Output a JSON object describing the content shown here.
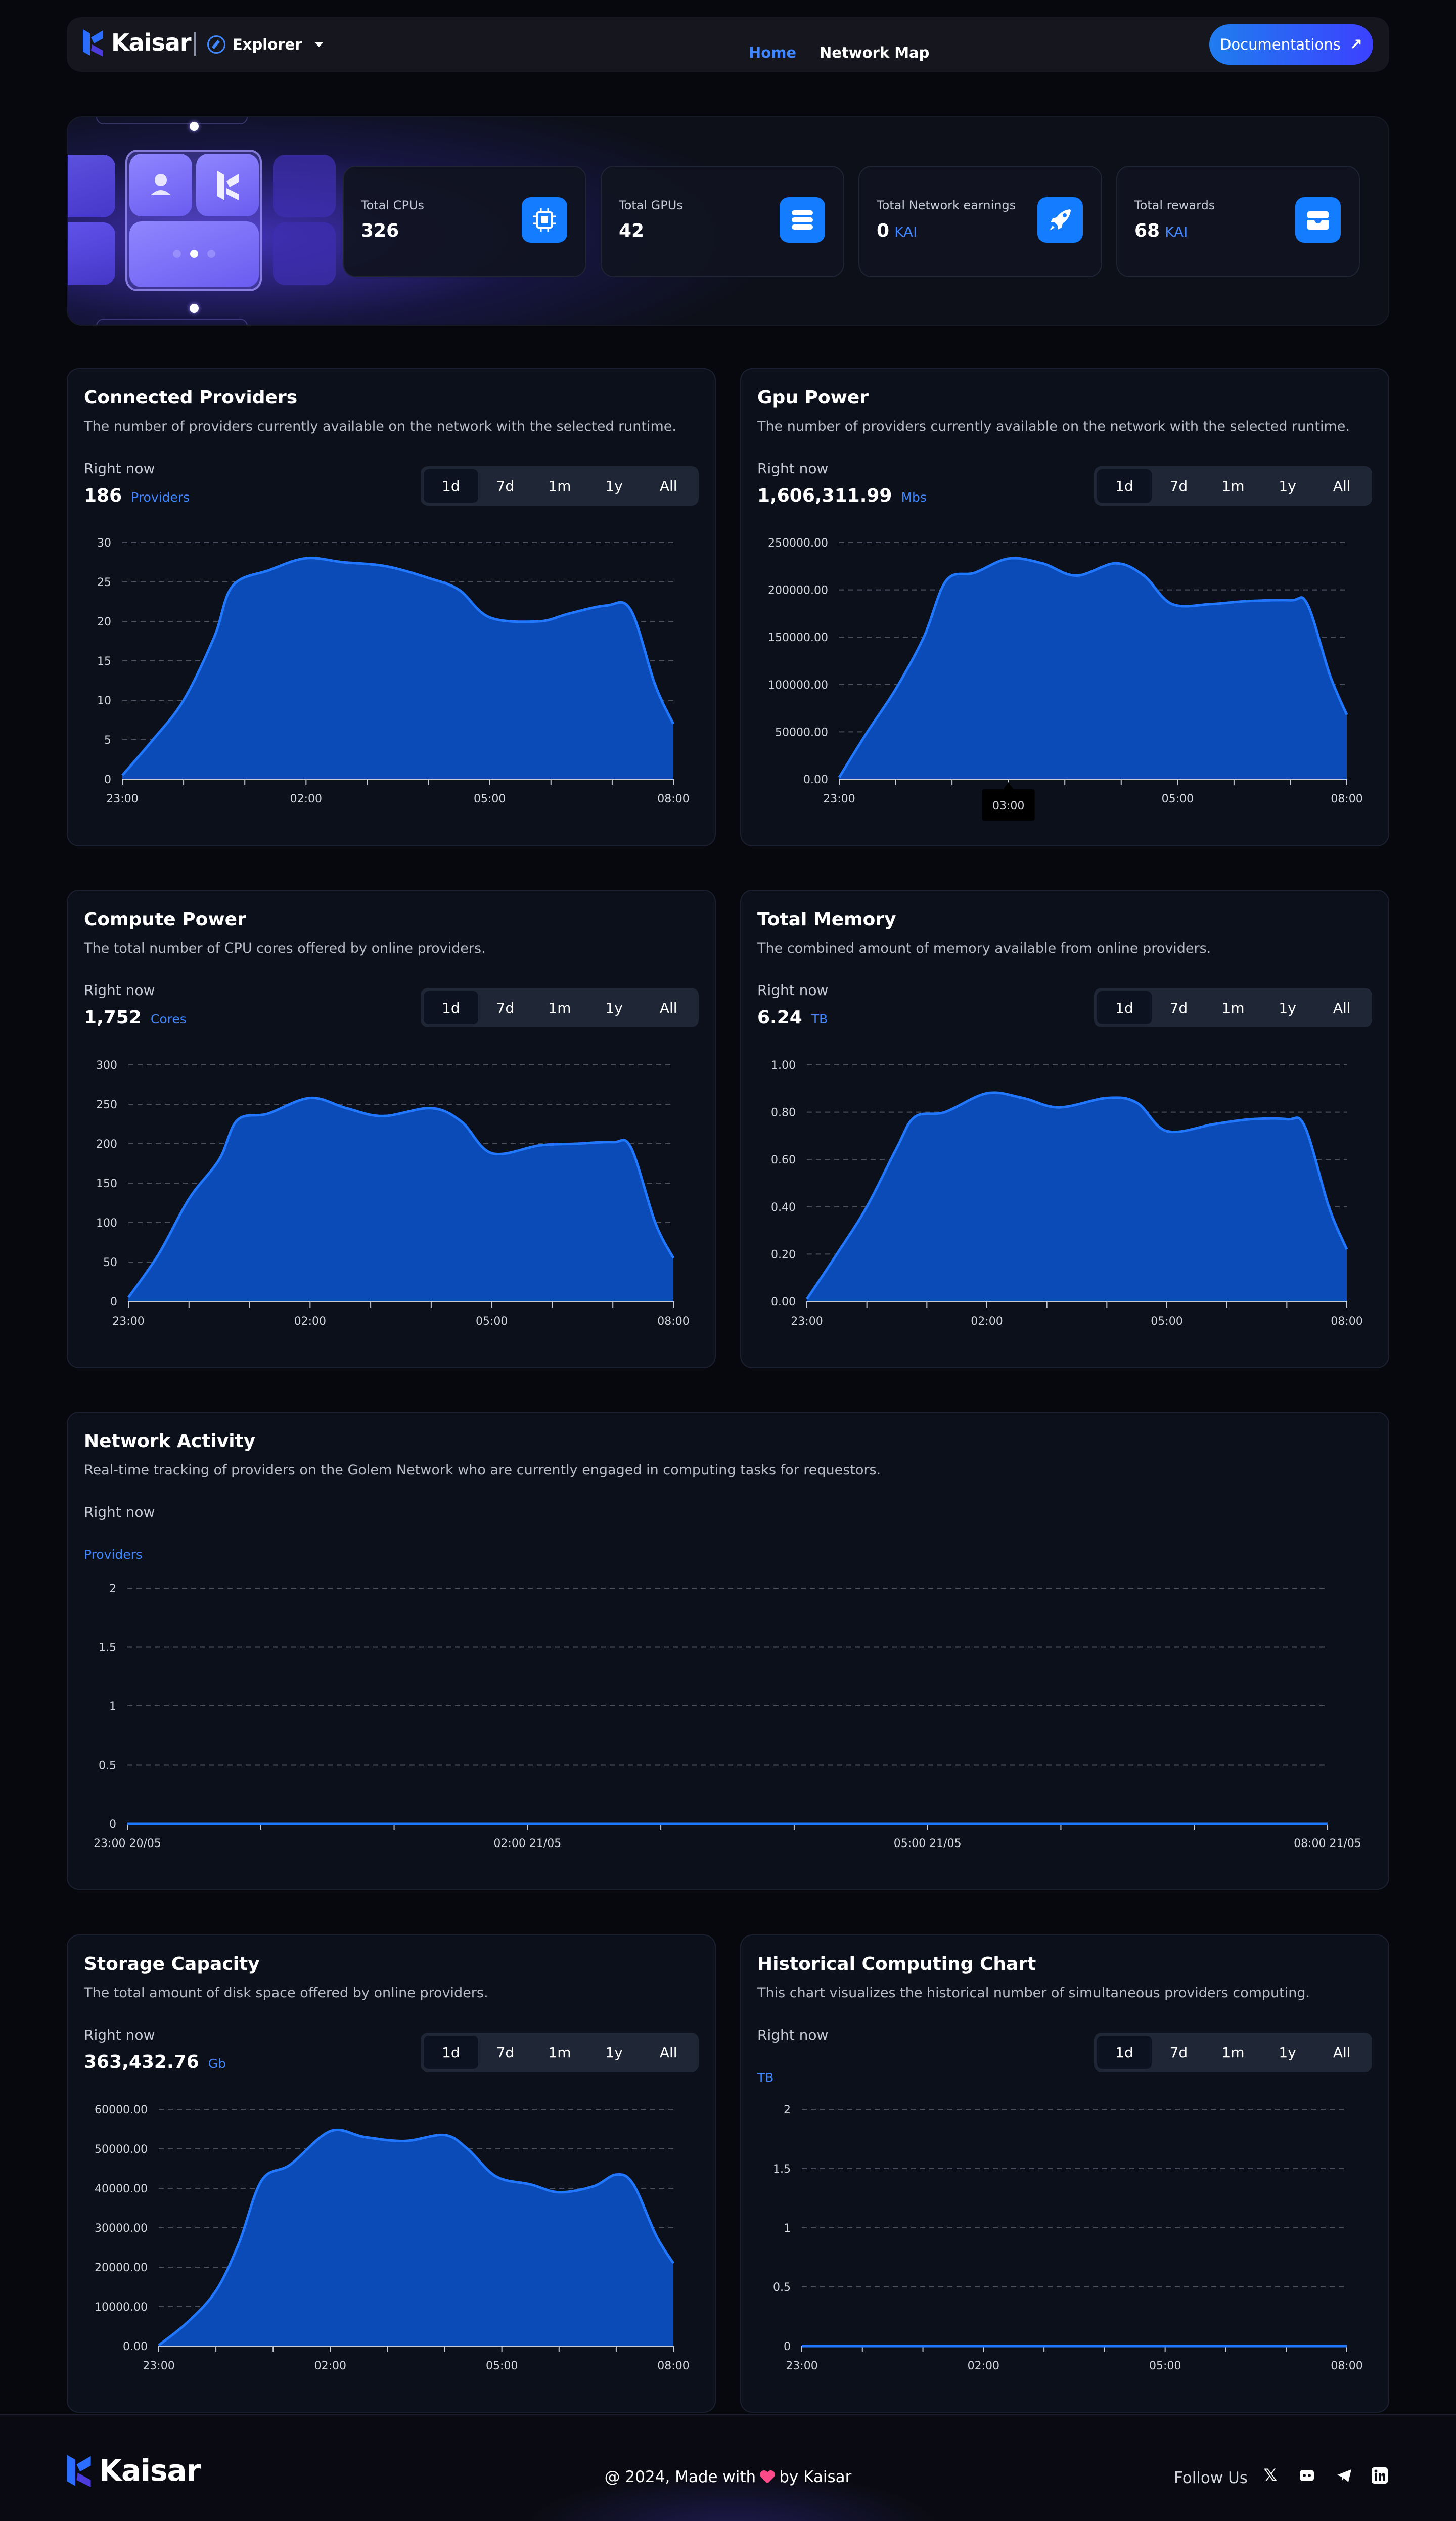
{
  "brand": "Kaisar",
  "nav": {
    "explorer": "Explorer",
    "links": [
      "Home",
      "Network Map"
    ],
    "docs": "Documentations"
  },
  "stats": [
    {
      "label": "Total CPUs",
      "value": "326",
      "unit": "",
      "icon": "cpu-icon"
    },
    {
      "label": "Total GPUs",
      "value": "42",
      "unit": "",
      "icon": "server-icon"
    },
    {
      "label": "Total Network earnings",
      "value": "0",
      "unit": "KAI",
      "icon": "rocket-icon"
    },
    {
      "label": "Total rewards",
      "value": "68",
      "unit": "KAI",
      "icon": "inbox-icon"
    }
  ],
  "ranges": [
    "1d",
    "7d",
    "1m",
    "1y",
    "All"
  ],
  "right_now": "Right now",
  "cards": [
    {
      "title": "Connected Providers",
      "desc": "The number of providers currently available on the network with the selected runtime.",
      "value": "186",
      "unit": "Providers"
    },
    {
      "title": "Gpu Power",
      "desc": "The number of providers currently available on the network with the selected runtime.",
      "value": "1,606,311.99",
      "unit": "Mbs",
      "tooltip": "03:00"
    },
    {
      "title": "Compute Power",
      "desc": "The total number of CPU cores offered by online providers.",
      "value": "1,752",
      "unit": "Cores"
    },
    {
      "title": "Total Memory",
      "desc": "The combined amount of memory available from online providers.",
      "value": "6.24",
      "unit": "TB"
    },
    {
      "title": "Network Activity",
      "desc": "Real-time tracking of providers on the Golem Network who are currently engaged in computing tasks for requestors.",
      "value": "",
      "unit": "Providers"
    },
    {
      "title": "Storage Capacity",
      "desc": "The total amount of disk space offered by online providers.",
      "value": "363,432.76",
      "unit": "Gb"
    },
    {
      "title": "Historical Computing Chart",
      "desc": "This chart visualizes the historical number of simultaneous providers computing.",
      "value": "",
      "unit": "TB"
    }
  ],
  "chart_data": [
    {
      "type": "area",
      "name": "connected-providers",
      "x": [
        "23:00",
        "02:00",
        "05:00",
        "08:00"
      ],
      "ylim": [
        0,
        30
      ],
      "yticks": [
        "0",
        "5",
        "10",
        "15",
        "20",
        "25",
        "30"
      ],
      "color": "#1d6fff",
      "points": [
        [
          23.0,
          0.5
        ],
        [
          23.5,
          5
        ],
        [
          24.0,
          10
        ],
        [
          24.5,
          18
        ],
        [
          24.8,
          24.5
        ],
        [
          25.4,
          26.5
        ],
        [
          26.0,
          28
        ],
        [
          26.6,
          27.5
        ],
        [
          27.3,
          27
        ],
        [
          28.0,
          25.5
        ],
        [
          28.5,
          24
        ],
        [
          29.0,
          20.5
        ],
        [
          29.8,
          20
        ],
        [
          30.3,
          21
        ],
        [
          30.9,
          22
        ],
        [
          31.3,
          21.5
        ],
        [
          31.7,
          12
        ],
        [
          32.0,
          7
        ]
      ]
    },
    {
      "type": "area",
      "name": "gpu-power",
      "x": [
        "23:00",
        "02:00",
        "05:00",
        "08:00"
      ],
      "ylim": [
        0,
        250000
      ],
      "yticks": [
        "0.00",
        "50000.00",
        "100000.00",
        "150000.00",
        "200000.00",
        "250000.00"
      ],
      "color": "#1d6fff",
      "points": [
        [
          23.0,
          2000
        ],
        [
          23.5,
          50000
        ],
        [
          24.0,
          95000
        ],
        [
          24.5,
          150000
        ],
        [
          24.9,
          210000
        ],
        [
          25.4,
          218000
        ],
        [
          26.0,
          233000
        ],
        [
          26.6,
          228000
        ],
        [
          27.2,
          215000
        ],
        [
          27.9,
          228000
        ],
        [
          28.4,
          215000
        ],
        [
          28.9,
          185000
        ],
        [
          29.6,
          185000
        ],
        [
          30.2,
          188000
        ],
        [
          31.0,
          189000
        ],
        [
          31.3,
          185000
        ],
        [
          31.7,
          110000
        ],
        [
          32.0,
          68000
        ]
      ]
    },
    {
      "type": "area",
      "name": "compute-power",
      "x": [
        "23:00",
        "02:00",
        "05:00",
        "08:00"
      ],
      "ylim": [
        0,
        300
      ],
      "yticks": [
        "0",
        "50",
        "100",
        "150",
        "200",
        "250",
        "300"
      ],
      "color": "#1d6fff",
      "points": [
        [
          23.0,
          5
        ],
        [
          23.5,
          60
        ],
        [
          24.0,
          130
        ],
        [
          24.5,
          180
        ],
        [
          24.8,
          230
        ],
        [
          25.3,
          238
        ],
        [
          26.0,
          258
        ],
        [
          26.6,
          245
        ],
        [
          27.2,
          235
        ],
        [
          28.0,
          245
        ],
        [
          28.5,
          228
        ],
        [
          29.0,
          188
        ],
        [
          29.8,
          198
        ],
        [
          30.4,
          200
        ],
        [
          31.0,
          202
        ],
        [
          31.3,
          195
        ],
        [
          31.7,
          100
        ],
        [
          32.0,
          55
        ]
      ]
    },
    {
      "type": "area",
      "name": "total-memory",
      "x": [
        "23:00",
        "02:00",
        "05:00",
        "08:00"
      ],
      "ylim": [
        0,
        1
      ],
      "yticks": [
        "0.00",
        "0.20",
        "0.40",
        "0.60",
        "0.80",
        "1.00"
      ],
      "color": "#1d6fff",
      "points": [
        [
          23.0,
          0.01
        ],
        [
          23.5,
          0.2
        ],
        [
          24.0,
          0.4
        ],
        [
          24.5,
          0.65
        ],
        [
          24.8,
          0.78
        ],
        [
          25.3,
          0.8
        ],
        [
          26.0,
          0.88
        ],
        [
          26.6,
          0.86
        ],
        [
          27.2,
          0.82
        ],
        [
          28.0,
          0.86
        ],
        [
          28.5,
          0.84
        ],
        [
          29.0,
          0.72
        ],
        [
          29.8,
          0.75
        ],
        [
          30.4,
          0.77
        ],
        [
          31.0,
          0.77
        ],
        [
          31.3,
          0.74
        ],
        [
          31.7,
          0.4
        ],
        [
          32.0,
          0.22
        ]
      ]
    },
    {
      "type": "line",
      "name": "network-activity",
      "x": [
        "23:00 20/05",
        "02:00 21/05",
        "05:00 21/05",
        "08:00 21/05"
      ],
      "ylim": [
        0,
        2
      ],
      "yticks": [
        "0",
        "0.5",
        "1",
        "1.5",
        "2"
      ],
      "color": "#1d6fff",
      "points": [
        [
          23.0,
          0
        ],
        [
          32.0,
          0
        ]
      ]
    },
    {
      "type": "area",
      "name": "storage-capacity",
      "x": [
        "23:00",
        "02:00",
        "05:00",
        "08:00"
      ],
      "ylim": [
        0,
        60000
      ],
      "yticks": [
        "0.00",
        "10000.00",
        "20000.00",
        "30000.00",
        "40000.00",
        "50000.00",
        "60000.00"
      ],
      "color": "#1d6fff",
      "points": [
        [
          23.0,
          200
        ],
        [
          23.5,
          6000
        ],
        [
          24.0,
          14000
        ],
        [
          24.4,
          26000
        ],
        [
          24.8,
          42000
        ],
        [
          25.3,
          46000
        ],
        [
          26.0,
          54500
        ],
        [
          26.6,
          53000
        ],
        [
          27.3,
          52000
        ],
        [
          28.0,
          53500
        ],
        [
          28.4,
          50000
        ],
        [
          28.9,
          43000
        ],
        [
          29.5,
          41000
        ],
        [
          30.0,
          39000
        ],
        [
          30.6,
          40500
        ],
        [
          31.0,
          43500
        ],
        [
          31.3,
          41000
        ],
        [
          31.7,
          28000
        ],
        [
          32.0,
          21000
        ]
      ]
    },
    {
      "type": "line",
      "name": "historical-computing",
      "x": [
        "23:00",
        "02:00",
        "05:00",
        "08:00"
      ],
      "ylim": [
        0,
        2
      ],
      "yticks": [
        "0",
        "0.5",
        "1",
        "1.5",
        "2"
      ],
      "color": "#1d6fff",
      "points": [
        [
          23.0,
          0
        ],
        [
          32.0,
          0
        ]
      ]
    }
  ],
  "footer": {
    "made_prefix": "@ 2024, Made with",
    "made_suffix": "by Kaisar",
    "follow": "Follow Us",
    "socials": [
      "x-icon",
      "discord-icon",
      "telegram-icon",
      "linkedin-icon"
    ]
  }
}
